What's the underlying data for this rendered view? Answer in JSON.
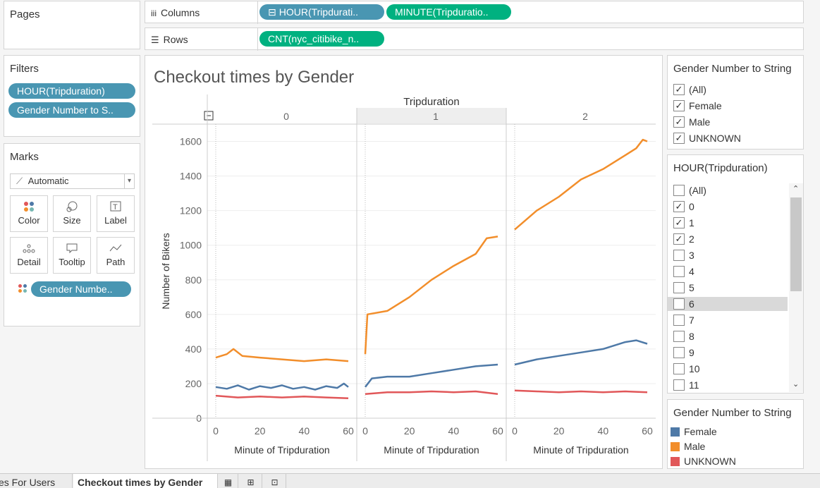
{
  "pages": {
    "title": "Pages"
  },
  "filters": {
    "title": "Filters",
    "pills": [
      "HOUR(Tripduration)",
      "Gender Number to S.."
    ]
  },
  "marks": {
    "title": "Marks",
    "type": "Automatic",
    "buttons": [
      "Color",
      "Size",
      "Label",
      "Detail",
      "Tooltip",
      "Path"
    ],
    "color_pill": "Gender Numbe.."
  },
  "shelves": {
    "columns_label": "Columns",
    "columns_pills": [
      "HOUR(Tripdurati..",
      "MINUTE(Tripduratio.."
    ],
    "rows_label": "Rows",
    "rows_pills": [
      "CNT(nyc_citibike_n.."
    ]
  },
  "gender_filter": {
    "title": "Gender Number to String",
    "items": [
      {
        "label": "(All)",
        "checked": true
      },
      {
        "label": "Female",
        "checked": true
      },
      {
        "label": "Male",
        "checked": true
      },
      {
        "label": "UNKNOWN",
        "checked": true
      }
    ]
  },
  "hour_filter": {
    "title": "HOUR(Tripduration)",
    "items": [
      {
        "label": "(All)",
        "checked": false
      },
      {
        "label": "0",
        "checked": true
      },
      {
        "label": "1",
        "checked": true
      },
      {
        "label": "2",
        "checked": true
      },
      {
        "label": "3",
        "checked": false
      },
      {
        "label": "4",
        "checked": false
      },
      {
        "label": "5",
        "checked": false
      },
      {
        "label": "6",
        "checked": false,
        "highlight": true
      },
      {
        "label": "7",
        "checked": false
      },
      {
        "label": "8",
        "checked": false
      },
      {
        "label": "9",
        "checked": false
      },
      {
        "label": "10",
        "checked": false
      },
      {
        "label": "11",
        "checked": false
      }
    ]
  },
  "legend": {
    "title": "Gender Number to String",
    "items": [
      {
        "label": "Female",
        "color": "#4e79a7"
      },
      {
        "label": "Male",
        "color": "#f28e2b"
      },
      {
        "label": "UNKNOWN",
        "color": "#e15759"
      }
    ]
  },
  "tabs": [
    "es For Users",
    "Checkout times by Gender"
  ],
  "chart_data": {
    "type": "line",
    "title": "Checkout times by Gender",
    "column_header": "Tripduration",
    "panels": [
      "0",
      "1",
      "2"
    ],
    "xlabel": "Minute of Tripduration",
    "ylabel": "Number of Bikers",
    "x_ticks": [
      0,
      20,
      40,
      60
    ],
    "y_ticks": [
      0,
      200,
      400,
      600,
      800,
      1000,
      1200,
      1400,
      1600
    ],
    "ylim": [
      0,
      1700
    ],
    "xlim": [
      0,
      60
    ],
    "series": [
      {
        "name": "Female",
        "color": "#4e79a7",
        "panels": [
          [
            [
              0,
              180
            ],
            [
              5,
              170
            ],
            [
              10,
              190
            ],
            [
              15,
              165
            ],
            [
              20,
              185
            ],
            [
              25,
              175
            ],
            [
              30,
              190
            ],
            [
              35,
              170
            ],
            [
              40,
              180
            ],
            [
              45,
              165
            ],
            [
              50,
              185
            ],
            [
              55,
              175
            ],
            [
              58,
              200
            ],
            [
              60,
              180
            ]
          ],
          [
            [
              0,
              180
            ],
            [
              3,
              230
            ],
            [
              10,
              240
            ],
            [
              20,
              240
            ],
            [
              30,
              260
            ],
            [
              40,
              280
            ],
            [
              50,
              300
            ],
            [
              60,
              310
            ]
          ],
          [
            [
              0,
              310
            ],
            [
              10,
              340
            ],
            [
              20,
              360
            ],
            [
              30,
              380
            ],
            [
              40,
              400
            ],
            [
              50,
              440
            ],
            [
              55,
              450
            ],
            [
              60,
              430
            ]
          ]
        ]
      },
      {
        "name": "Male",
        "color": "#f28e2b",
        "panels": [
          [
            [
              0,
              350
            ],
            [
              5,
              370
            ],
            [
              8,
              400
            ],
            [
              12,
              360
            ],
            [
              20,
              350
            ],
            [
              30,
              340
            ],
            [
              40,
              330
            ],
            [
              50,
              340
            ],
            [
              60,
              330
            ]
          ],
          [
            [
              0,
              370
            ],
            [
              1,
              600
            ],
            [
              10,
              620
            ],
            [
              20,
              700
            ],
            [
              30,
              800
            ],
            [
              40,
              880
            ],
            [
              50,
              950
            ],
            [
              55,
              1040
            ],
            [
              60,
              1050
            ]
          ],
          [
            [
              0,
              1090
            ],
            [
              10,
              1200
            ],
            [
              20,
              1280
            ],
            [
              30,
              1380
            ],
            [
              40,
              1440
            ],
            [
              50,
              1520
            ],
            [
              55,
              1560
            ],
            [
              58,
              1610
            ],
            [
              60,
              1600
            ]
          ]
        ]
      },
      {
        "name": "UNKNOWN",
        "color": "#e15759",
        "panels": [
          [
            [
              0,
              130
            ],
            [
              10,
              120
            ],
            [
              20,
              125
            ],
            [
              30,
              120
            ],
            [
              40,
              125
            ],
            [
              50,
              120
            ],
            [
              60,
              115
            ]
          ],
          [
            [
              0,
              140
            ],
            [
              10,
              150
            ],
            [
              20,
              150
            ],
            [
              30,
              155
            ],
            [
              40,
              150
            ],
            [
              50,
              155
            ],
            [
              60,
              140
            ]
          ],
          [
            [
              0,
              160
            ],
            [
              10,
              155
            ],
            [
              20,
              150
            ],
            [
              30,
              155
            ],
            [
              40,
              150
            ],
            [
              50,
              155
            ],
            [
              60,
              150
            ]
          ]
        ]
      }
    ]
  }
}
